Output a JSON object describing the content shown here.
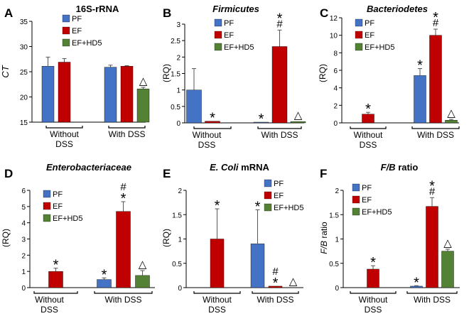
{
  "colors": {
    "PF": "#4472C4",
    "EF": "#C00000",
    "EF+HD5": "#548235",
    "axis": "#000000"
  },
  "group_labels": [
    [
      "Without",
      "DSS"
    ],
    [
      "With DSS"
    ]
  ],
  "chart_data": [
    {
      "panel": "A",
      "type": "bar",
      "title": "16S-rRNA",
      "title_italic": false,
      "ylabel": "CT",
      "ylabel_italic": true,
      "ylim": [
        15,
        35
      ],
      "yticks": [
        "15",
        "20",
        "25",
        "30",
        "35"
      ],
      "legend": [
        "PF",
        "EF",
        "EF+HD5"
      ],
      "series": [
        {
          "name": "PF",
          "values": [
            26.1,
            25.9
          ],
          "errors": [
            1.8,
            0.4
          ]
        },
        {
          "name": "EF",
          "values": [
            26.9,
            26.1
          ],
          "errors": [
            0.7,
            0.1
          ]
        },
        {
          "name": "EF+HD5",
          "values": [
            null,
            21.6
          ],
          "errors": [
            null,
            0.3
          ]
        }
      ],
      "annotations": [
        {
          "group": 1,
          "series": 2,
          "text": "△"
        }
      ]
    },
    {
      "panel": "B",
      "type": "bar",
      "title": "Firmicutes",
      "title_italic": true,
      "ylabel": "(RQ)",
      "ylabel_italic": false,
      "ylim": [
        0,
        3
      ],
      "yticks": [
        "0",
        "0.5",
        "1",
        "1.5",
        "2",
        "2.5",
        "3"
      ],
      "legend": [
        "PF",
        "EF",
        "EF+HD5"
      ],
      "series": [
        {
          "name": "PF",
          "values": [
            1.0,
            0.0
          ],
          "errors": [
            0.65,
            0
          ]
        },
        {
          "name": "EF",
          "values": [
            0.05,
            2.32
          ],
          "errors": [
            0,
            0.5
          ]
        },
        {
          "name": "EF+HD5",
          "values": [
            null,
            0.04
          ],
          "errors": [
            null,
            0
          ]
        }
      ],
      "annotations": [
        {
          "group": 0,
          "series": 1,
          "text": "*"
        },
        {
          "group": 1,
          "series": 0,
          "text": "*"
        },
        {
          "group": 1,
          "series": 1,
          "text": "#"
        },
        {
          "group": 1,
          "series": 1,
          "text": "*"
        },
        {
          "group": 1,
          "series": 2,
          "text": "△"
        }
      ]
    },
    {
      "panel": "C",
      "type": "bar",
      "title": "Bacteriodetes",
      "title_italic": true,
      "ylabel": "(RQ)",
      "ylabel_italic": false,
      "ylim": [
        0,
        12
      ],
      "yticks": [
        "0",
        "2",
        "4",
        "6",
        "8",
        "10",
        "12"
      ],
      "legend": [
        "PF",
        "EF",
        "EF+HD5"
      ],
      "series": [
        {
          "name": "PF",
          "values": [
            null,
            5.4
          ],
          "errors": [
            null,
            0.8
          ]
        },
        {
          "name": "EF",
          "values": [
            1.0,
            10.0
          ],
          "errors": [
            0.2,
            0.7
          ]
        },
        {
          "name": "EF+HD5",
          "values": [
            null,
            0.3
          ],
          "errors": [
            null,
            0.1
          ]
        }
      ],
      "annotations": [
        {
          "group": 0,
          "series": 1,
          "text": "*"
        },
        {
          "group": 1,
          "series": 0,
          "text": "*"
        },
        {
          "group": 1,
          "series": 1,
          "text": "#"
        },
        {
          "group": 1,
          "series": 1,
          "text": "*"
        },
        {
          "group": 1,
          "series": 2,
          "text": "△"
        }
      ]
    },
    {
      "panel": "D",
      "type": "bar",
      "title": "Enterobacteriaceae",
      "title_italic": true,
      "ylabel": "(RQ)",
      "ylabel_italic": false,
      "ylim": [
        0,
        6
      ],
      "yticks": [
        "0",
        "1",
        "2",
        "3",
        "4",
        "5",
        "6"
      ],
      "legend": [
        "PF",
        "EF",
        "EF+HD5"
      ],
      "series": [
        {
          "name": "PF",
          "values": [
            null,
            0.5
          ],
          "errors": [
            null,
            0.1
          ]
        },
        {
          "name": "EF",
          "values": [
            1.0,
            4.7
          ],
          "errors": [
            0.2,
            0.6
          ]
        },
        {
          "name": "EF+HD5",
          "values": [
            null,
            0.75
          ],
          "errors": [
            null,
            0.3
          ]
        }
      ],
      "annotations": [
        {
          "group": 0,
          "series": 1,
          "text": "*"
        },
        {
          "group": 1,
          "series": 0,
          "text": "*"
        },
        {
          "group": 1,
          "series": 1,
          "text": "*"
        },
        {
          "group": 1,
          "series": 1,
          "text": "#"
        },
        {
          "group": 1,
          "series": 2,
          "text": "△"
        }
      ]
    },
    {
      "panel": "E",
      "type": "bar",
      "title": "E. Coli mRNA",
      "title_italic": true,
      "title_parts": [
        {
          "text": "E. Coli",
          "italic": true
        },
        {
          "text": " mRNA",
          "italic": false
        }
      ],
      "ylabel": "(RQ)",
      "ylabel_italic": false,
      "ylim": [
        0,
        2
      ],
      "yticks": [
        "0",
        "0.5",
        "1",
        "1.5",
        "2"
      ],
      "legend": [
        "PF",
        "EF",
        "EF+HD5"
      ],
      "series": [
        {
          "name": "PF",
          "values": [
            null,
            0.9
          ],
          "errors": [
            null,
            0.7
          ]
        },
        {
          "name": "EF",
          "values": [
            1.0,
            0.03
          ],
          "errors": [
            0.62,
            0
          ]
        },
        {
          "name": "EF+HD5",
          "values": [
            null,
            null
          ],
          "errors": [
            null,
            null
          ]
        }
      ],
      "annotations": [
        {
          "group": 0,
          "series": 1,
          "text": "*"
        },
        {
          "group": 1,
          "series": 0,
          "text": "*"
        },
        {
          "group": 1,
          "series": 1,
          "text": "*"
        },
        {
          "group": 1,
          "series": 1,
          "text": "#"
        },
        {
          "group": 1,
          "series": 2,
          "text": "△"
        }
      ]
    },
    {
      "panel": "F",
      "type": "bar",
      "title": "F/B ratio",
      "title_italic": false,
      "title_parts": [
        {
          "text": "F/B",
          "italic": true
        },
        {
          "text": " ratio",
          "italic": false
        }
      ],
      "ylabel": "F/B ratio",
      "ylabel_italic": false,
      "ylabel_parts": [
        {
          "text": "F/B",
          "italic": true
        },
        {
          "text": " ratio",
          "italic": false
        }
      ],
      "ylim": [
        0,
        2
      ],
      "yticks": [
        "0",
        "0.5",
        "1",
        "1.5",
        "2"
      ],
      "legend": [
        "PF",
        "EF",
        "EF+HD5"
      ],
      "series": [
        {
          "name": "PF",
          "values": [
            null,
            0.03
          ],
          "errors": [
            null,
            0.01
          ]
        },
        {
          "name": "EF",
          "values": [
            0.38,
            1.67
          ],
          "errors": [
            0.07,
            0.18
          ]
        },
        {
          "name": "EF+HD5",
          "values": [
            null,
            0.75
          ],
          "errors": [
            null,
            0.04
          ]
        }
      ],
      "annotations": [
        {
          "group": 0,
          "series": 1,
          "text": "*"
        },
        {
          "group": 1,
          "series": 0,
          "text": "*"
        },
        {
          "group": 1,
          "series": 1,
          "text": "#"
        },
        {
          "group": 1,
          "series": 1,
          "text": "*"
        },
        {
          "group": 1,
          "series": 2,
          "text": "△"
        }
      ]
    }
  ]
}
